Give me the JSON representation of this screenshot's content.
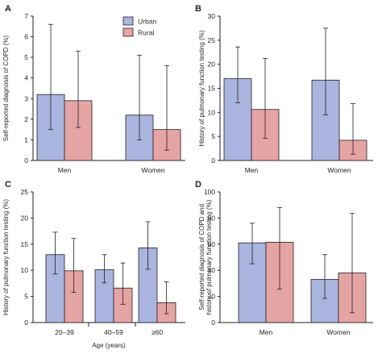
{
  "legend": {
    "items": [
      {
        "label": "Urban",
        "color": "#a9b5de"
      },
      {
        "label": "Rural",
        "color": "#e5a4a4"
      }
    ]
  },
  "colors": {
    "urban": "#a9b5de",
    "rural": "#e5a4a4",
    "stroke": "#231f20"
  },
  "chart_data": [
    {
      "type": "bar",
      "panel": "A",
      "ylabel": "Self-reported diagnosis of COPD (%)",
      "ylim": [
        0,
        7
      ],
      "yticks": [
        0,
        1,
        2,
        3,
        4,
        5,
        6,
        7
      ],
      "categories": [
        "Men",
        "Women"
      ],
      "series": [
        {
          "name": "Urban",
          "values": [
            3.2,
            2.2
          ],
          "err_low": [
            1.5,
            1.0
          ],
          "err_high": [
            6.6,
            5.1
          ]
        },
        {
          "name": "Rural",
          "values": [
            2.9,
            1.5
          ],
          "err_low": [
            1.6,
            0.5
          ],
          "err_high": [
            5.3,
            4.6
          ]
        }
      ]
    },
    {
      "type": "bar",
      "panel": "B",
      "ylabel": "History of pulmonary function testing (%)",
      "ylim": [
        0,
        30
      ],
      "yticks": [
        0,
        5,
        10,
        15,
        20,
        25,
        30
      ],
      "categories": [
        "Men",
        "Women"
      ],
      "series": [
        {
          "name": "Urban",
          "values": [
            17.0,
            16.7
          ],
          "err_low": [
            12.0,
            9.5
          ],
          "err_high": [
            23.6,
            27.5
          ]
        },
        {
          "name": "Rural",
          "values": [
            10.6,
            4.2
          ],
          "err_low": [
            4.6,
            1.3
          ],
          "err_high": [
            21.2,
            11.8
          ]
        }
      ]
    },
    {
      "type": "bar",
      "panel": "C",
      "ylabel": "History of pulmonary function testing (%)",
      "xlabel": "Age (years)",
      "ylim": [
        0,
        25
      ],
      "yticks": [
        0,
        5,
        10,
        15,
        20,
        25
      ],
      "categories": [
        "20–39",
        "40–59",
        "≥60"
      ],
      "series": [
        {
          "name": "Urban",
          "values": [
            13.0,
            10.1,
            14.3
          ],
          "err_low": [
            9.3,
            7.6,
            10.2
          ],
          "err_high": [
            17.3,
            13.0,
            19.3
          ]
        },
        {
          "name": "Rural",
          "values": [
            9.9,
            6.6,
            3.8
          ],
          "err_low": [
            5.8,
            3.5,
            1.7
          ],
          "err_high": [
            16.1,
            11.4,
            7.8
          ]
        }
      ]
    },
    {
      "type": "bar",
      "panel": "D",
      "ylabel": "Self-reported diagnosis of COPD and history of pulmonary function testing (%)",
      "ylabel_lines": [
        "Self-reported diagnosis of COPD and",
        "history of pulmonary function testing (%)"
      ],
      "ylim": [
        0,
        100
      ],
      "yticks": [
        0,
        20,
        40,
        60,
        80,
        100
      ],
      "categories": [
        "Men",
        "Women"
      ],
      "series": [
        {
          "name": "Urban",
          "values": [
            61.0,
            33.0
          ],
          "err_low": [
            45.0,
            18.5
          ],
          "err_high": [
            76.0,
            52.0
          ]
        },
        {
          "name": "Rural",
          "values": [
            61.5,
            38.0
          ],
          "err_low": [
            25.5,
            7.5
          ],
          "err_high": [
            88.0,
            83.5
          ]
        }
      ]
    }
  ]
}
